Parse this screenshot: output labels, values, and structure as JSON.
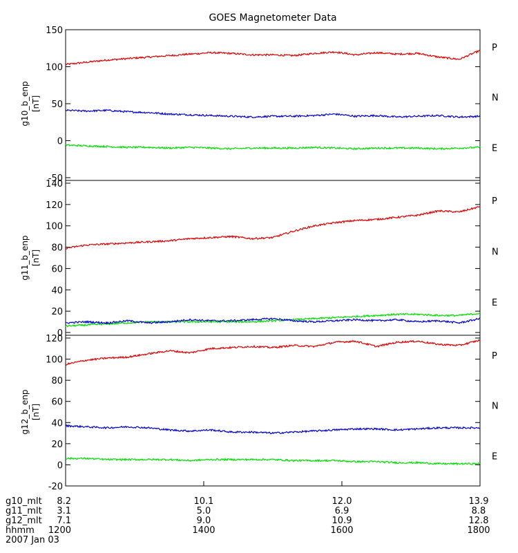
{
  "chart_data": {
    "type": "line",
    "title": "GOES Magnetometer Data",
    "panels": [
      {
        "ylabel": "g10_b_enp",
        "unit": "[nT]",
        "ylim": [
          -50,
          150
        ],
        "yticks": [
          -50,
          0,
          50,
          100,
          150
        ],
        "series": [
          {
            "name": "P",
            "color": "#dd0000",
            "x": [
              0,
              0.05,
              0.1,
              0.15,
              0.2,
              0.25,
              0.3,
              0.35,
              0.4,
              0.45,
              0.5,
              0.55,
              0.6,
              0.65,
              0.7,
              0.75,
              0.8,
              0.85,
              0.9,
              0.95,
              1.0
            ],
            "y": [
              103,
              106,
              109,
              111,
              113,
              115,
              117,
              119,
              118,
              116,
              116,
              115,
              118,
              120,
              116,
              119,
              117,
              118,
              113,
              110,
              122
            ]
          },
          {
            "name": "N",
            "color": "#0000cc",
            "x": [
              0,
              0.05,
              0.1,
              0.15,
              0.2,
              0.25,
              0.3,
              0.35,
              0.4,
              0.45,
              0.5,
              0.55,
              0.6,
              0.65,
              0.7,
              0.75,
              0.8,
              0.85,
              0.9,
              0.95,
              1.0
            ],
            "y": [
              41,
              40,
              41,
              39,
              38,
              36,
              35,
              34,
              33,
              32,
              33,
              33,
              34,
              36,
              33,
              34,
              32,
              33,
              34,
              32,
              33
            ]
          },
          {
            "name": "E",
            "color": "#00dd00",
            "x": [
              0,
              0.05,
              0.1,
              0.15,
              0.2,
              0.25,
              0.3,
              0.35,
              0.4,
              0.45,
              0.5,
              0.55,
              0.6,
              0.65,
              0.7,
              0.75,
              0.8,
              0.85,
              0.9,
              0.95,
              1.0
            ],
            "y": [
              -6,
              -7,
              -8,
              -9,
              -9,
              -10,
              -9,
              -10,
              -11,
              -10,
              -10,
              -10,
              -9,
              -10,
              -11,
              -10,
              -10,
              -10,
              -11,
              -10,
              -9
            ]
          }
        ]
      },
      {
        "ylabel": "g11_b_enp",
        "unit": "[nT]",
        "ylim": [
          0,
          140
        ],
        "yticks": [
          0,
          20,
          40,
          60,
          80,
          100,
          120,
          140
        ],
        "series": [
          {
            "name": "P",
            "color": "#dd0000",
            "x": [
              0,
              0.05,
              0.1,
              0.15,
              0.2,
              0.25,
              0.3,
              0.35,
              0.4,
              0.45,
              0.5,
              0.55,
              0.6,
              0.65,
              0.7,
              0.75,
              0.8,
              0.85,
              0.9,
              0.95,
              1.0
            ],
            "y": [
              79,
              82,
              83,
              84,
              85,
              86,
              88,
              89,
              90,
              88,
              89,
              95,
              100,
              103,
              105,
              106,
              108,
              110,
              114,
              113,
              118
            ]
          },
          {
            "name": "N",
            "color": "#00dd00",
            "x": [
              0,
              0.05,
              0.1,
              0.15,
              0.2,
              0.25,
              0.3,
              0.35,
              0.4,
              0.45,
              0.5,
              0.55,
              0.6,
              0.65,
              0.7,
              0.75,
              0.8,
              0.85,
              0.9,
              0.95,
              1.0
            ],
            "y": [
              6,
              7,
              8,
              9,
              10,
              10,
              10,
              10,
              10,
              10,
              11,
              12,
              13,
              14,
              15,
              16,
              17,
              17,
              16,
              16,
              18
            ]
          },
          {
            "name": "E",
            "color": "#0000cc",
            "x": [
              0,
              0.05,
              0.1,
              0.15,
              0.2,
              0.25,
              0.3,
              0.35,
              0.4,
              0.45,
              0.5,
              0.55,
              0.6,
              0.65,
              0.7,
              0.75,
              0.8,
              0.85,
              0.9,
              0.95,
              1.0
            ],
            "y": [
              9,
              10,
              9,
              11,
              9,
              10,
              12,
              11,
              11,
              12,
              13,
              11,
              10,
              11,
              12,
              11,
              12,
              10,
              11,
              9,
              13
            ]
          }
        ]
      },
      {
        "ylabel": "g12_b_enp",
        "unit": "[nT]",
        "ylim": [
          -20,
          120
        ],
        "yticks": [
          -20,
          0,
          20,
          40,
          60,
          80,
          100,
          120
        ],
        "series": [
          {
            "name": "P",
            "color": "#dd0000",
            "x": [
              0,
              0.05,
              0.1,
              0.15,
              0.2,
              0.25,
              0.3,
              0.35,
              0.4,
              0.45,
              0.5,
              0.55,
              0.6,
              0.65,
              0.7,
              0.75,
              0.8,
              0.85,
              0.9,
              0.95,
              1.0
            ],
            "y": [
              95,
              99,
              101,
              102,
              105,
              108,
              106,
              110,
              111,
              112,
              111,
              113,
              112,
              116,
              117,
              112,
              116,
              117,
              114,
              113,
              118
            ]
          },
          {
            "name": "N",
            "color": "#0000cc",
            "x": [
              0,
              0.05,
              0.1,
              0.15,
              0.2,
              0.25,
              0.3,
              0.35,
              0.4,
              0.45,
              0.5,
              0.55,
              0.6,
              0.65,
              0.7,
              0.75,
              0.8,
              0.85,
              0.9,
              0.95,
              1.0
            ],
            "y": [
              37,
              36,
              35,
              36,
              35,
              33,
              32,
              33,
              31,
              31,
              30,
              31,
              32,
              33,
              34,
              34,
              33,
              34,
              35,
              35,
              35
            ]
          },
          {
            "name": "E",
            "color": "#00dd00",
            "x": [
              0,
              0.05,
              0.1,
              0.15,
              0.2,
              0.25,
              0.3,
              0.35,
              0.4,
              0.45,
              0.5,
              0.55,
              0.6,
              0.65,
              0.7,
              0.75,
              0.8,
              0.85,
              0.9,
              0.95,
              1.0
            ],
            "y": [
              6,
              6,
              5,
              5,
              5,
              5,
              4,
              5,
              5,
              5,
              5,
              4,
              4,
              4,
              3,
              3,
              2,
              2,
              1,
              1,
              1
            ]
          }
        ]
      }
    ],
    "x_axis": {
      "ticks": [
        {
          "x": 0.0,
          "label": "1200"
        },
        {
          "x": 0.3333,
          "label": "1400"
        },
        {
          "x": 0.6667,
          "label": "1600"
        },
        {
          "x": 1.0,
          "label": "1800"
        }
      ],
      "rows": [
        {
          "label": "g10_mlt",
          "values": [
            "8.2",
            "10.1",
            "12.0",
            "13.9"
          ]
        },
        {
          "label": "g11_mlt",
          "values": [
            "3.1",
            "5.0",
            "6.9",
            "8.8"
          ]
        },
        {
          "label": "g12_mlt",
          "values": [
            "7.1",
            "9.0",
            "10.9",
            "12.8"
          ]
        },
        {
          "label": "hhmm",
          "values": [
            "1200",
            "1400",
            "1600",
            "1800"
          ]
        }
      ],
      "date": "2007 Jan 03"
    }
  }
}
